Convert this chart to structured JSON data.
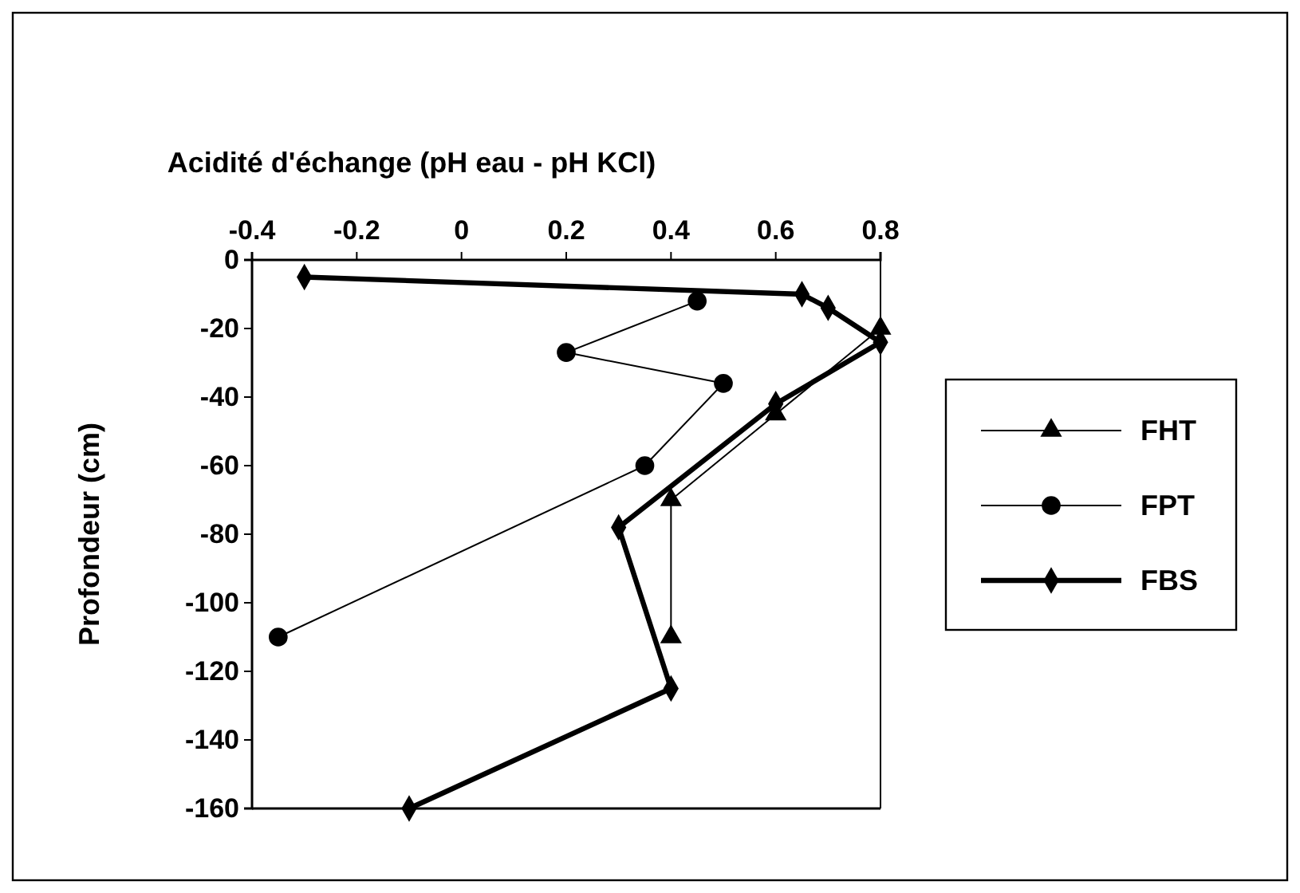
{
  "chart_data": {
    "type": "line",
    "xlabel": "Acidité d'échange  (pH eau - pH KCl)",
    "ylabel": "Profondeur  (cm)",
    "xlim": [
      -0.4,
      0.8
    ],
    "xticks": [
      -0.4,
      -0.2,
      0,
      0.2,
      0.4,
      0.6,
      0.8
    ],
    "ylim": [
      -160,
      0
    ],
    "yticks": [
      -160,
      -140,
      -120,
      -100,
      -80,
      -60,
      -40,
      -20,
      0
    ],
    "legend": "right",
    "grid": false,
    "series": [
      {
        "name": "FHT",
        "color": "#000000",
        "marker": "triangle",
        "x": [
          0.8,
          0.6,
          0.4,
          0.4
        ],
        "values": [
          -20,
          -45,
          -70,
          -110
        ]
      },
      {
        "name": "FPT",
        "color": "#000000",
        "marker": "circle",
        "x": [
          0.45,
          0.2,
          0.5,
          0.35,
          -0.35
        ],
        "values": [
          -12,
          -27,
          -36,
          -60,
          -110
        ]
      },
      {
        "name": "FBS",
        "color": "#000000",
        "marker": "diamond",
        "x": [
          -0.3,
          0.65,
          0.7,
          0.8,
          0.6,
          0.3,
          0.4,
          -0.1
        ],
        "values": [
          -5,
          -10,
          -14,
          -24,
          -42,
          -78,
          -125,
          -160
        ]
      }
    ]
  }
}
